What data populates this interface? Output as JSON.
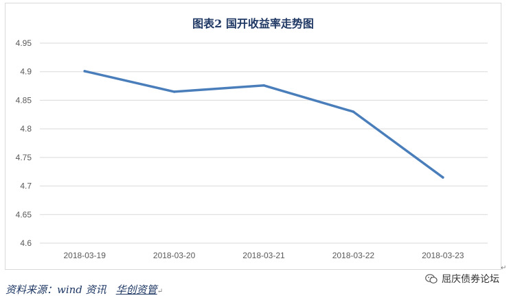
{
  "chart_data": {
    "type": "line",
    "title": "图表2 国开收益率走势图",
    "categories": [
      "2018-03-19",
      "2018-03-20",
      "2018-03-21",
      "2018-03-22",
      "2018-03-23"
    ],
    "values": [
      4.901,
      4.865,
      4.876,
      4.83,
      4.715
    ],
    "ylim": [
      4.6,
      4.95
    ],
    "yticks": [
      "4.6",
      "4.65",
      "4.7",
      "4.75",
      "4.8",
      "4.85",
      "4.9",
      "4.95"
    ],
    "grid": true,
    "legend": "none",
    "line_color": "#4a7ebb"
  },
  "footer": {
    "source_label": "资料来源：wind 资讯",
    "source_author": "华创资管",
    "brand": "屈庆债券论坛"
  }
}
